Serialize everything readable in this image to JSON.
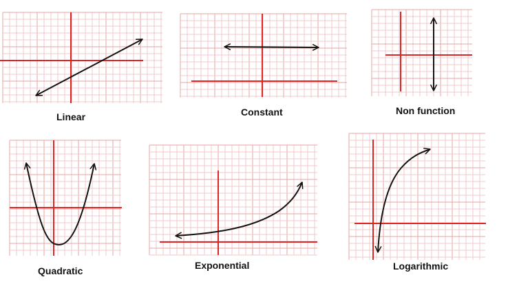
{
  "colors": {
    "grid_minor": "#f2c9c9",
    "grid_major": "#e8a3a3",
    "axis": "#e02424",
    "curve": "#111111",
    "background": "#ffffff"
  },
  "graphs": [
    {
      "id": "linear",
      "label": "Linear",
      "curve": "line with arrows at both ends, rising left to right"
    },
    {
      "id": "constant",
      "label": "Constant",
      "curve": "horizontal line with arrows at both ends"
    },
    {
      "id": "non-function",
      "label": "Non function",
      "curve": "vertical line with arrows at both ends"
    },
    {
      "id": "quadratic",
      "label": "Quadratic",
      "curve": "upward-opening parabola with arrows on both arms"
    },
    {
      "id": "exponential",
      "label": "Exponential",
      "curve": "exponential growth curve with arrows at both ends"
    },
    {
      "id": "logarithmic",
      "label": "Logarithmic",
      "curve": "logarithmic curve with arrows at both ends"
    }
  ]
}
